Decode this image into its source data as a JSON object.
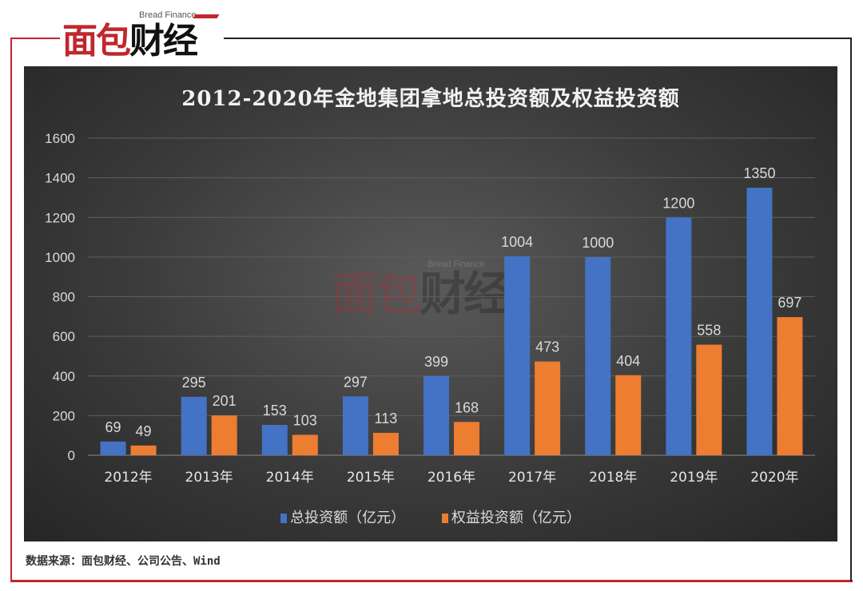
{
  "logo": {
    "sub": "Bread Finance",
    "main_red": "面包",
    "main_black": "财经"
  },
  "source": "数据来源：面包财经、公司公告、Wind",
  "colors": {
    "blue": "#4472c4",
    "orange": "#ed7d31",
    "frame": "#c0272d"
  },
  "chart_data": {
    "type": "bar",
    "title": "2012-2020年金地集团拿地总投资额及权益投资额",
    "categories": [
      "2012年",
      "2013年",
      "2014年",
      "2015年",
      "2016年",
      "2017年",
      "2018年",
      "2019年",
      "2020年"
    ],
    "series": [
      {
        "name": "总投资额（亿元）",
        "color": "#4472c4",
        "values": [
          69,
          295,
          153,
          297,
          399,
          1004,
          1000,
          1200,
          1350
        ]
      },
      {
        "name": "权益投资额（亿元）",
        "color": "#ed7d31",
        "values": [
          49,
          201,
          103,
          113,
          168,
          473,
          404,
          558,
          697
        ]
      }
    ],
    "yticks": [
      0,
      200,
      400,
      600,
      800,
      1000,
      1200,
      1400,
      1600
    ],
    "ylim": [
      0,
      1600
    ],
    "grid": true,
    "legend": "bottom",
    "data_labels": true
  }
}
